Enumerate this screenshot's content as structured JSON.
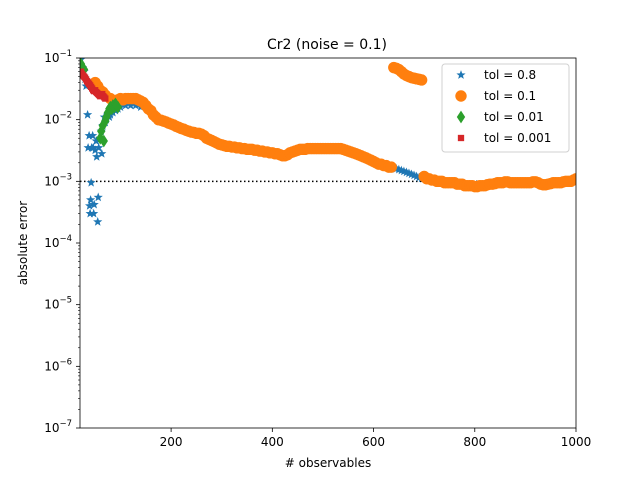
{
  "chart_data": {
    "type": "scatter",
    "title": "Cr2 (noise = 0.1)",
    "xlabel": "# observables",
    "ylabel": "absolute error",
    "xlim": [
      20,
      1000
    ],
    "ylim": [
      1e-07,
      0.1
    ],
    "yscale": "log",
    "grid": false,
    "legend_position": "top-right",
    "x_ticks": [
      {
        "value": 200,
        "label": "200"
      },
      {
        "value": 400,
        "label": "400"
      },
      {
        "value": 600,
        "label": "600"
      },
      {
        "value": 800,
        "label": "800"
      },
      {
        "value": 1000,
        "label": "1000"
      }
    ],
    "y_ticks": [
      {
        "value": 1e-07,
        "base": "10",
        "exp": "−7"
      },
      {
        "value": 1e-06,
        "base": "10",
        "exp": "−6"
      },
      {
        "value": 1e-05,
        "base": "10",
        "exp": "−5"
      },
      {
        "value": 0.0001,
        "base": "10",
        "exp": "−4"
      },
      {
        "value": 0.001,
        "base": "10",
        "exp": "−3"
      },
      {
        "value": 0.01,
        "base": "10",
        "exp": "−2"
      },
      {
        "value": 0.1,
        "base": "10",
        "exp": "−1"
      }
    ],
    "reference_line": {
      "y": 0.001,
      "style": "dotted",
      "color": "#000000"
    },
    "series": [
      {
        "name": "tol = 0.8",
        "marker": "star",
        "color": "#1f77b4",
        "points": [
          [
            22,
            0.095
          ],
          [
            25,
            0.07
          ],
          [
            28,
            0.06
          ],
          [
            30,
            0.045
          ],
          [
            32,
            0.035
          ],
          [
            35,
            0.012
          ],
          [
            36,
            0.0035
          ],
          [
            38,
            0.0055
          ],
          [
            39,
            0.0004
          ],
          [
            40,
            0.0003
          ],
          [
            41,
            0.0005
          ],
          [
            42,
            0.00095
          ],
          [
            43,
            0.0035
          ],
          [
            45,
            0.0055
          ],
          [
            46,
            0.0035
          ],
          [
            47,
            0.0003
          ],
          [
            48,
            0.00042
          ],
          [
            50,
            0.0032
          ],
          [
            52,
            0.0045
          ],
          [
            53,
            0.0025
          ],
          [
            55,
            0.00022
          ],
          [
            56,
            0.00055
          ],
          [
            57,
            0.0035
          ],
          [
            58,
            0.0048
          ],
          [
            60,
            0.005
          ],
          [
            62,
            0.0065
          ],
          [
            63,
            0.0028
          ],
          [
            65,
            0.008
          ],
          [
            68,
            0.011
          ],
          [
            70,
            0.009
          ],
          [
            72,
            0.01
          ],
          [
            75,
            0.012
          ],
          [
            78,
            0.011
          ],
          [
            80,
            0.012
          ],
          [
            85,
            0.013
          ],
          [
            90,
            0.014
          ],
          [
            95,
            0.015
          ],
          [
            100,
            0.016
          ],
          [
            110,
            0.017
          ],
          [
            120,
            0.017
          ],
          [
            130,
            0.017
          ],
          [
            140,
            0.016
          ],
          [
            150,
            0.016
          ],
          [
            160,
            0.015
          ],
          [
            640,
            0.00165
          ],
          [
            645,
            0.0016
          ],
          [
            650,
            0.00155
          ],
          [
            655,
            0.0015
          ],
          [
            660,
            0.00145
          ],
          [
            665,
            0.0014
          ],
          [
            670,
            0.00135
          ],
          [
            675,
            0.0013
          ],
          [
            680,
            0.00125
          ],
          [
            685,
            0.0012
          ],
          [
            690,
            0.00115
          ],
          [
            695,
            0.00112
          ]
        ]
      },
      {
        "name": "tol = 0.1",
        "marker": "circle",
        "color": "#ff7f0e",
        "points": [
          [
            50,
            0.04
          ],
          [
            55,
            0.035
          ],
          [
            60,
            0.03
          ],
          [
            65,
            0.028
          ],
          [
            70,
            0.025
          ],
          [
            80,
            0.022
          ],
          [
            90,
            0.02
          ],
          [
            95,
            0.021
          ],
          [
            100,
            0.022
          ],
          [
            105,
            0.021
          ],
          [
            110,
            0.022
          ],
          [
            115,
            0.022
          ],
          [
            120,
            0.022
          ],
          [
            125,
            0.022
          ],
          [
            130,
            0.022
          ],
          [
            135,
            0.021
          ],
          [
            140,
            0.02
          ],
          [
            145,
            0.019
          ],
          [
            150,
            0.017
          ],
          [
            155,
            0.015
          ],
          [
            160,
            0.014
          ],
          [
            165,
            0.012
          ],
          [
            170,
            0.011
          ],
          [
            175,
            0.01
          ],
          [
            180,
            0.0098
          ],
          [
            185,
            0.0095
          ],
          [
            190,
            0.0092
          ],
          [
            195,
            0.0088
          ],
          [
            200,
            0.0085
          ],
          [
            205,
            0.0082
          ],
          [
            210,
            0.0078
          ],
          [
            215,
            0.0075
          ],
          [
            220,
            0.0072
          ],
          [
            225,
            0.007
          ],
          [
            230,
            0.0067
          ],
          [
            235,
            0.0065
          ],
          [
            240,
            0.0063
          ],
          [
            245,
            0.0062
          ],
          [
            250,
            0.006
          ],
          [
            255,
            0.006
          ],
          [
            260,
            0.0058
          ],
          [
            265,
            0.0055
          ],
          [
            270,
            0.005
          ],
          [
            275,
            0.0048
          ],
          [
            280,
            0.0046
          ],
          [
            285,
            0.0044
          ],
          [
            290,
            0.0042
          ],
          [
            295,
            0.004
          ],
          [
            300,
            0.0039
          ],
          [
            305,
            0.0038
          ],
          [
            310,
            0.0037
          ],
          [
            315,
            0.0037
          ],
          [
            320,
            0.0036
          ],
          [
            325,
            0.0036
          ],
          [
            330,
            0.0035
          ],
          [
            335,
            0.0035
          ],
          [
            340,
            0.0034
          ],
          [
            345,
            0.0034
          ],
          [
            350,
            0.0033
          ],
          [
            355,
            0.0033
          ],
          [
            360,
            0.0033
          ],
          [
            365,
            0.0032
          ],
          [
            370,
            0.0032
          ],
          [
            375,
            0.0031
          ],
          [
            380,
            0.0031
          ],
          [
            385,
            0.003
          ],
          [
            390,
            0.003
          ],
          [
            395,
            0.0029
          ],
          [
            400,
            0.0029
          ],
          [
            405,
            0.0028
          ],
          [
            410,
            0.0028
          ],
          [
            415,
            0.0027
          ],
          [
            420,
            0.0026
          ],
          [
            425,
            0.0026
          ],
          [
            430,
            0.0027
          ],
          [
            435,
            0.0029
          ],
          [
            440,
            0.003
          ],
          [
            445,
            0.0031
          ],
          [
            450,
            0.0032
          ],
          [
            455,
            0.0033
          ],
          [
            460,
            0.0033
          ],
          [
            465,
            0.0033
          ],
          [
            470,
            0.0034
          ],
          [
            475,
            0.0034
          ],
          [
            480,
            0.0034
          ],
          [
            485,
            0.0034
          ],
          [
            490,
            0.0034
          ],
          [
            495,
            0.0034
          ],
          [
            500,
            0.0034
          ],
          [
            505,
            0.0034
          ],
          [
            510,
            0.0034
          ],
          [
            515,
            0.0034
          ],
          [
            520,
            0.0034
          ],
          [
            525,
            0.0034
          ],
          [
            530,
            0.0034
          ],
          [
            535,
            0.0034
          ],
          [
            540,
            0.0033
          ],
          [
            545,
            0.0032
          ],
          [
            550,
            0.0031
          ],
          [
            555,
            0.003
          ],
          [
            560,
            0.0029
          ],
          [
            565,
            0.0028
          ],
          [
            570,
            0.0027
          ],
          [
            575,
            0.0026
          ],
          [
            580,
            0.0025
          ],
          [
            585,
            0.0024
          ],
          [
            590,
            0.0023
          ],
          [
            595,
            0.0022
          ],
          [
            600,
            0.0021
          ],
          [
            605,
            0.002
          ],
          [
            610,
            0.0019
          ],
          [
            615,
            0.0019
          ],
          [
            620,
            0.0018
          ],
          [
            625,
            0.0018
          ],
          [
            630,
            0.0017
          ],
          [
            635,
            0.0017
          ],
          [
            640,
            0.07
          ],
          [
            645,
            0.068
          ],
          [
            650,
            0.065
          ],
          [
            655,
            0.06
          ],
          [
            660,
            0.055
          ],
          [
            665,
            0.052
          ],
          [
            670,
            0.05
          ],
          [
            675,
            0.048
          ],
          [
            680,
            0.047
          ],
          [
            685,
            0.046
          ],
          [
            690,
            0.045
          ],
          [
            695,
            0.044
          ],
          [
            700,
            0.0012
          ],
          [
            705,
            0.0011
          ],
          [
            710,
            0.0011
          ],
          [
            715,
            0.00105
          ],
          [
            720,
            0.00105
          ],
          [
            725,
            0.001
          ],
          [
            730,
            0.001
          ],
          [
            735,
            0.001
          ],
          [
            740,
            0.00095
          ],
          [
            745,
            0.00095
          ],
          [
            750,
            0.00095
          ],
          [
            755,
            0.00095
          ],
          [
            760,
            0.00095
          ],
          [
            765,
            0.0009
          ],
          [
            770,
            0.0009
          ],
          [
            775,
            0.0009
          ],
          [
            780,
            0.00085
          ],
          [
            785,
            0.00085
          ],
          [
            790,
            0.00085
          ],
          [
            795,
            0.00085
          ],
          [
            800,
            0.00082
          ],
          [
            805,
            0.00082
          ],
          [
            810,
            0.00085
          ],
          [
            815,
            0.00085
          ],
          [
            820,
            0.00085
          ],
          [
            825,
            0.00088
          ],
          [
            830,
            0.0009
          ],
          [
            835,
            0.0009
          ],
          [
            840,
            0.00092
          ],
          [
            845,
            0.00095
          ],
          [
            850,
            0.00095
          ],
          [
            855,
            0.00095
          ],
          [
            860,
            0.00098
          ],
          [
            865,
            0.00098
          ],
          [
            870,
            0.00095
          ],
          [
            875,
            0.00095
          ],
          [
            880,
            0.00095
          ],
          [
            885,
            0.00095
          ],
          [
            890,
            0.00095
          ],
          [
            895,
            0.00095
          ],
          [
            900,
            0.00095
          ],
          [
            905,
            0.00095
          ],
          [
            910,
            0.00095
          ],
          [
            915,
            0.00098
          ],
          [
            920,
            0.00098
          ],
          [
            925,
            0.00095
          ],
          [
            930,
            0.0009
          ],
          [
            935,
            0.00088
          ],
          [
            940,
            0.00088
          ],
          [
            945,
            0.0009
          ],
          [
            950,
            0.00092
          ],
          [
            955,
            0.00095
          ],
          [
            960,
            0.00095
          ],
          [
            965,
            0.00095
          ],
          [
            970,
            0.00095
          ],
          [
            975,
            0.00098
          ],
          [
            980,
            0.001
          ],
          [
            985,
            0.001
          ],
          [
            990,
            0.001
          ],
          [
            995,
            0.00105
          ],
          [
            1000,
            0.0011
          ]
        ]
      },
      {
        "name": "tol = 0.01",
        "marker": "diamond",
        "color": "#2ca02c",
        "points": [
          [
            22,
            0.08
          ],
          [
            25,
            0.07
          ],
          [
            28,
            0.065
          ],
          [
            60,
            0.005
          ],
          [
            62,
            0.0065
          ],
          [
            65,
            0.008
          ],
          [
            67,
            0.0045
          ],
          [
            70,
            0.0095
          ],
          [
            72,
            0.011
          ],
          [
            75,
            0.013
          ],
          [
            78,
            0.015
          ],
          [
            80,
            0.016
          ],
          [
            83,
            0.015
          ],
          [
            85,
            0.017
          ],
          [
            88,
            0.016
          ],
          [
            90,
            0.018
          ],
          [
            92,
            0.017
          ],
          [
            95,
            0.016
          ]
        ]
      },
      {
        "name": "tol = 0.001",
        "marker": "square",
        "color": "#d62728",
        "points": [
          [
            22,
            0.06
          ],
          [
            24,
            0.055
          ],
          [
            26,
            0.052
          ],
          [
            28,
            0.05
          ],
          [
            30,
            0.048
          ],
          [
            32,
            0.045
          ],
          [
            34,
            0.042
          ],
          [
            36,
            0.04
          ],
          [
            38,
            0.038
          ],
          [
            40,
            0.036
          ],
          [
            42,
            0.034
          ],
          [
            44,
            0.032
          ],
          [
            46,
            0.03
          ],
          [
            48,
            0.029
          ],
          [
            50,
            0.03
          ],
          [
            52,
            0.028
          ],
          [
            54,
            0.027
          ],
          [
            56,
            0.026
          ],
          [
            58,
            0.025
          ],
          [
            60,
            0.024
          ],
          [
            62,
            0.025
          ],
          [
            64,
            0.026
          ],
          [
            66,
            0.024
          ],
          [
            68,
            0.023
          ],
          [
            70,
            0.022
          ]
        ]
      }
    ]
  }
}
